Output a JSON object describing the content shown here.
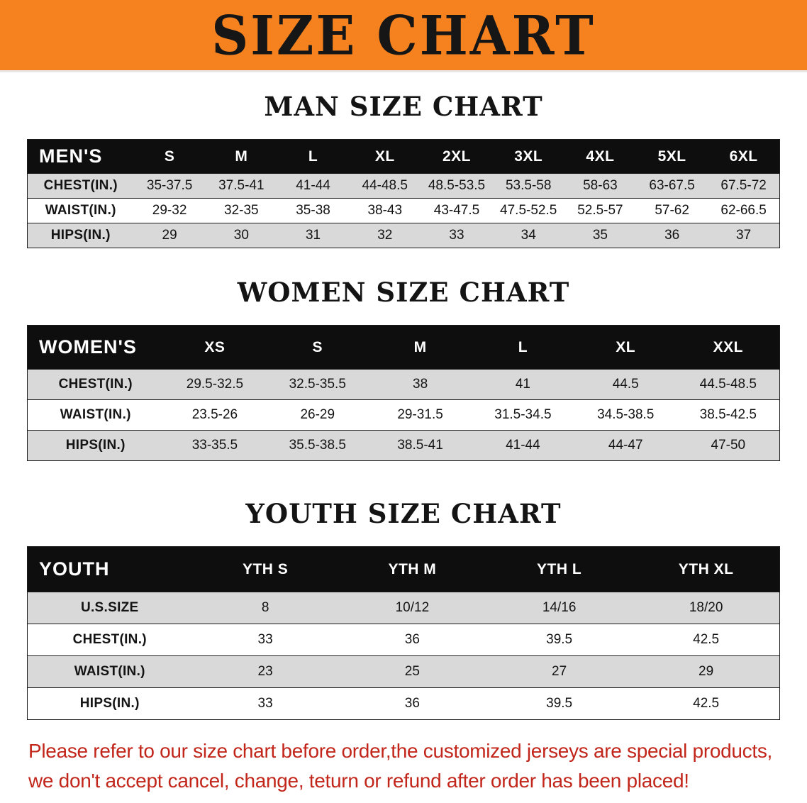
{
  "banner": {
    "title": "SIZE CHART",
    "bg_color": "#F5821F"
  },
  "men": {
    "heading": "MAN SIZE CHART",
    "table": {
      "header": [
        "MEN'S",
        "S",
        "M",
        "L",
        "XL",
        "2XL",
        "3XL",
        "4XL",
        "5XL",
        "6XL"
      ],
      "rows": [
        [
          "CHEST(IN.)",
          "35-37.5",
          "37.5-41",
          "41-44",
          "44-48.5",
          "48.5-53.5",
          "53.5-58",
          "58-63",
          "63-67.5",
          "67.5-72"
        ],
        [
          "WAIST(IN.)",
          "29-32",
          "32-35",
          "35-38",
          "38-43",
          "43-47.5",
          "47.5-52.5",
          "52.5-57",
          "57-62",
          "62-66.5"
        ],
        [
          "HIPS(IN.)",
          "29",
          "30",
          "31",
          "32",
          "33",
          "34",
          "35",
          "36",
          "37"
        ]
      ]
    }
  },
  "women": {
    "heading": "WOMEN SIZE CHART",
    "table": {
      "header": [
        "WOMEN'S",
        "XS",
        "S",
        "M",
        "L",
        "XL",
        "XXL"
      ],
      "rows": [
        [
          "CHEST(IN.)",
          "29.5-32.5",
          "32.5-35.5",
          "38",
          "41",
          "44.5",
          "44.5-48.5"
        ],
        [
          "WAIST(IN.)",
          "23.5-26",
          "26-29",
          "29-31.5",
          "31.5-34.5",
          "34.5-38.5",
          "38.5-42.5"
        ],
        [
          "HIPS(IN.)",
          "33-35.5",
          "35.5-38.5",
          "38.5-41",
          "41-44",
          "44-47",
          "47-50"
        ]
      ]
    }
  },
  "youth": {
    "heading": "YOUTH SIZE CHART",
    "table": {
      "header": [
        "YOUTH",
        "YTH S",
        "YTH M",
        "YTH L",
        "YTH XL"
      ],
      "rows": [
        [
          "U.S.SIZE",
          "8",
          "10/12",
          "14/16",
          "18/20"
        ],
        [
          "CHEST(IN.)",
          "33",
          "36",
          "39.5",
          "42.5"
        ],
        [
          "WAIST(IN.)",
          "23",
          "25",
          "27",
          "29"
        ],
        [
          "HIPS(IN.)",
          "33",
          "36",
          "39.5",
          "42.5"
        ]
      ]
    }
  },
  "footer": {
    "line1": "Please refer to our size chart before order,the customized jerseys are special products,",
    "line2": "we don't accept cancel, change, teturn or refund after order has been placed!",
    "text_color": "#C2261B"
  }
}
